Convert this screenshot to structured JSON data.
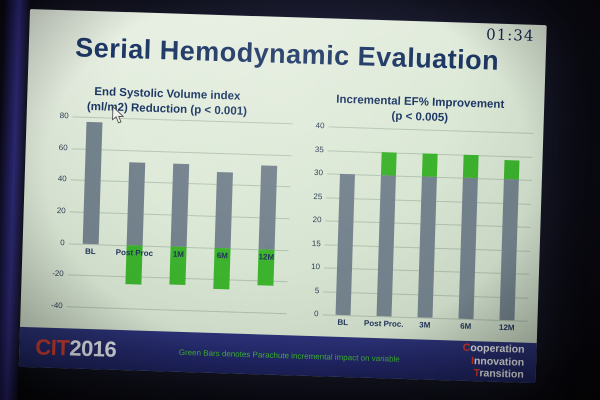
{
  "slide": {
    "timer": "01:34",
    "title": "Serial Hemodynamic Evaluation"
  },
  "footer": {
    "logo_cit": "CIT",
    "logo_year": "2016",
    "note": "Green Bars denotes Parachute incremental impact on variable",
    "words": [
      {
        "first": "C",
        "rest": "ooperation"
      },
      {
        "first": "I",
        "rest": "nnovation"
      },
      {
        "first": "T",
        "rest": "ransition"
      }
    ]
  },
  "colors": {
    "bar_gray": "#75838E",
    "bar_green": "#3CB32D",
    "title_navy": "#1D3764",
    "footer_band": "#262B6D",
    "cit_red": "#CF3B2F",
    "note_green": "#3DBB35"
  },
  "chart_data": [
    {
      "type": "bar",
      "title": "End Systolic Volume index (ml/m2) Reduction (p < 0.001)",
      "title_line1": "End Systolic Volume index",
      "title_line2": "(ml/m2) Reduction (p < 0.001)",
      "categories": [
        "BL",
        "Post Proc",
        "1M",
        "6M",
        "12M"
      ],
      "series": [
        {
          "name": "observed value (gray)",
          "color": "#75838E",
          "values": [
            77,
            52,
            52,
            48,
            53
          ]
        },
        {
          "name": "Parachute incremental impact (green)",
          "color": "#3CB32D",
          "values": [
            0,
            -25,
            -24,
            -26,
            -23
          ]
        }
      ],
      "ylim": [
        -40,
        80
      ],
      "yticks": [
        80,
        60,
        40,
        20,
        0,
        -20,
        -40
      ],
      "xlabel": "",
      "ylabel": "",
      "grid": true,
      "legend": false
    },
    {
      "type": "bar",
      "title": "Incremental EF% Improvement (p < 0.005)",
      "title_line1": "Incremental EF% Improvement",
      "title_line2": "(p < 0.005)",
      "categories": [
        "BL",
        "Post Proc.",
        "3M",
        "6M",
        "12M"
      ],
      "series": [
        {
          "name": "observed value (gray)",
          "color": "#75838E",
          "values": [
            30,
            30,
            30,
            30,
            30
          ]
        },
        {
          "name": "Parachute incremental impact (green)",
          "color": "#3CB32D",
          "values": [
            0,
            5,
            5,
            5,
            4
          ]
        }
      ],
      "ylim": [
        0,
        40
      ],
      "yticks": [
        40,
        35,
        30,
        25,
        20,
        15,
        10,
        5,
        0
      ],
      "xlabel": "",
      "ylabel": "",
      "grid": true,
      "legend": false
    }
  ]
}
